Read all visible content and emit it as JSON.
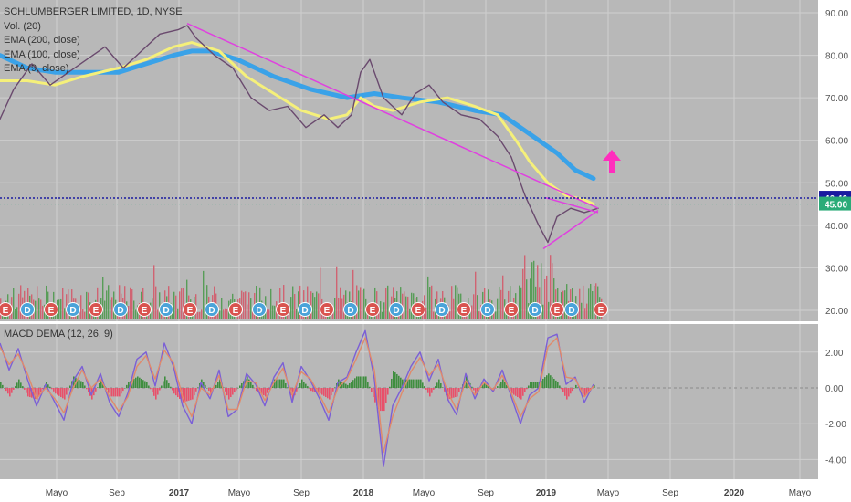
{
  "legend": {
    "symbol": "SCHLUMBERGER LIMITED, 1D, NYSE",
    "volume": "Vol. (20)",
    "ema200": "EMA (200, close)",
    "ema100": "EMA (100, close)",
    "ema9": "EMA (9, close)",
    "macd": "MACD DEMA (12, 26, 9)"
  },
  "colors": {
    "ema200": "#3aa2e8",
    "ema100": "#f5f07a",
    "price": "#6a4a6e",
    "trendline": "#e040e0",
    "hline": "#1a1aa0",
    "price_tag": "#2bab78",
    "macd_line": "#7b5fd6",
    "signal_line": "#e08a6a",
    "hist_up": "#3f8e3f",
    "hist_down": "#e8506a",
    "earnings": "#d9534f",
    "dividend": "#4aa3d9",
    "arrow": "#ff2dbd"
  },
  "chart_data": [
    {
      "type": "line",
      "title": "SCHLUMBERGER LIMITED, 1D, NYSE",
      "x_ticks": [
        "Mayo",
        "Sep",
        "2017",
        "Mayo",
        "Sep",
        "2018",
        "Mayo",
        "Sep",
        "2019",
        "Mayo",
        "Sep",
        "2020",
        "Mayo"
      ],
      "y_ticks": [
        "90.00",
        "80.00",
        "70.00",
        "60.00",
        "50.00",
        "40.00",
        "30.00",
        "20.00"
      ],
      "ylim": [
        17,
        91
      ],
      "price_labels": [
        {
          "label": "46.40",
          "value": 46.4,
          "kind": "horizontal-line"
        },
        {
          "label": "45.00",
          "value": 45.0,
          "kind": "last-price"
        }
      ],
      "series": [
        {
          "name": "EMA (200, close)",
          "points": [
            [
              0,
              80
            ],
            [
              30,
              77
            ],
            [
              60,
              76
            ],
            [
              90,
              76
            ],
            [
              130,
              76
            ],
            [
              160,
              78
            ],
            [
              190,
              80
            ],
            [
              210,
              81
            ],
            [
              230,
              81
            ],
            [
              260,
              79
            ],
            [
              300,
              75
            ],
            [
              340,
              72
            ],
            [
              380,
              70
            ],
            [
              410,
              71
            ],
            [
              440,
              70
            ],
            [
              480,
              69
            ],
            [
              520,
              67
            ],
            [
              550,
              66
            ],
            [
              570,
              63
            ],
            [
              590,
              60
            ],
            [
              610,
              57
            ],
            [
              630,
              53
            ],
            [
              650,
              51
            ]
          ]
        },
        {
          "name": "EMA (100, close)",
          "points": [
            [
              0,
              74
            ],
            [
              30,
              74
            ],
            [
              60,
              73
            ],
            [
              90,
              75
            ],
            [
              130,
              77
            ],
            [
              160,
              79
            ],
            [
              190,
              82
            ],
            [
              210,
              83
            ],
            [
              240,
              81
            ],
            [
              270,
              75
            ],
            [
              300,
              71
            ],
            [
              330,
              67
            ],
            [
              360,
              65
            ],
            [
              380,
              66
            ],
            [
              395,
              70
            ],
            [
              410,
              68
            ],
            [
              430,
              67
            ],
            [
              460,
              69
            ],
            [
              490,
              70
            ],
            [
              520,
              68
            ],
            [
              545,
              66
            ],
            [
              565,
              60
            ],
            [
              580,
              55
            ],
            [
              600,
              50
            ],
            [
              620,
              47
            ],
            [
              640,
              46
            ],
            [
              650,
              45
            ]
          ]
        },
        {
          "name": "EMA (9, close)",
          "points": [
            [
              0,
              65
            ],
            [
              15,
              72
            ],
            [
              35,
              78
            ],
            [
              55,
              73
            ],
            [
              75,
              76
            ],
            [
              95,
              79
            ],
            [
              115,
              82
            ],
            [
              135,
              77
            ],
            [
              155,
              81
            ],
            [
              175,
              85
            ],
            [
              195,
              86
            ],
            [
              205,
              87
            ],
            [
              215,
              84
            ],
            [
              235,
              80
            ],
            [
              255,
              77
            ],
            [
              275,
              70
            ],
            [
              295,
              67
            ],
            [
              315,
              68
            ],
            [
              335,
              63
            ],
            [
              355,
              66
            ],
            [
              370,
              63
            ],
            [
              385,
              66
            ],
            [
              395,
              76
            ],
            [
              405,
              79
            ],
            [
              420,
              70
            ],
            [
              440,
              66
            ],
            [
              455,
              71
            ],
            [
              470,
              73
            ],
            [
              485,
              69
            ],
            [
              505,
              66
            ],
            [
              525,
              65
            ],
            [
              545,
              61
            ],
            [
              560,
              56
            ],
            [
              575,
              47
            ],
            [
              590,
              40
            ],
            [
              600,
              36
            ],
            [
              610,
              42
            ],
            [
              625,
              44
            ],
            [
              640,
              43
            ],
            [
              655,
              44
            ]
          ]
        }
      ],
      "trendlines": [
        {
          "from": [
            205,
            87.5
          ],
          "to": [
            655,
            44
          ]
        },
        {
          "from": [
            595,
            34.5
          ],
          "to": [
            655,
            43.5
          ]
        },
        {
          "from": [
            597,
            46.5
          ],
          "to": [
            655,
            43
          ]
        }
      ],
      "markers": [
        "E",
        "D",
        "E",
        "D",
        "E",
        "D",
        "E",
        "D",
        "E",
        "D",
        "E",
        "D",
        "E",
        "D",
        "E",
        "D",
        "E",
        "D",
        "E",
        "D",
        "E",
        "D",
        "E",
        "D",
        "E",
        "D",
        "E"
      ]
    },
    {
      "type": "line",
      "title": "MACD DEMA (12, 26, 9)",
      "y_ticks": [
        "2.00",
        "0.00",
        "-2.00",
        "-4.00"
      ],
      "ylim": [
        -4.5,
        3.5
      ],
      "series": [
        {
          "name": "MACD",
          "points": [
            [
              0,
              2.5
            ],
            [
              10,
              1.0
            ],
            [
              20,
              2.2
            ],
            [
              30,
              0.5
            ],
            [
              40,
              -1.0
            ],
            [
              50,
              0.2
            ],
            [
              60,
              -0.8
            ],
            [
              70,
              -1.8
            ],
            [
              80,
              0.4
            ],
            [
              90,
              1.2
            ],
            [
              100,
              -0.4
            ],
            [
              110,
              0.8
            ],
            [
              120,
              -0.8
            ],
            [
              130,
              -1.6
            ],
            [
              140,
              -0.3
            ],
            [
              150,
              1.6
            ],
            [
              160,
              2.0
            ],
            [
              170,
              0.1
            ],
            [
              180,
              2.5
            ],
            [
              190,
              1.2
            ],
            [
              200,
              -1.0
            ],
            [
              210,
              -2.0
            ],
            [
              220,
              0.3
            ],
            [
              230,
              -0.6
            ],
            [
              240,
              1.0
            ],
            [
              250,
              -1.6
            ],
            [
              260,
              -1.2
            ],
            [
              270,
              0.8
            ],
            [
              280,
              0.2
            ],
            [
              290,
              -1.0
            ],
            [
              300,
              0.6
            ],
            [
              310,
              1.4
            ],
            [
              320,
              -0.8
            ],
            [
              330,
              1.2
            ],
            [
              340,
              0.4
            ],
            [
              350,
              -0.6
            ],
            [
              360,
              -1.8
            ],
            [
              370,
              0.3
            ],
            [
              380,
              0.6
            ],
            [
              390,
              2.0
            ],
            [
              400,
              3.2
            ],
            [
              410,
              0.5
            ],
            [
              415,
              -2.0
            ],
            [
              420,
              -4.4
            ],
            [
              430,
              -1.0
            ],
            [
              440,
              0.0
            ],
            [
              450,
              1.2
            ],
            [
              460,
              2.0
            ],
            [
              470,
              0.4
            ],
            [
              480,
              1.6
            ],
            [
              490,
              -0.6
            ],
            [
              500,
              -1.5
            ],
            [
              510,
              0.8
            ],
            [
              520,
              -0.6
            ],
            [
              530,
              0.5
            ],
            [
              540,
              -0.2
            ],
            [
              550,
              1.0
            ],
            [
              560,
              -0.5
            ],
            [
              570,
              -2.0
            ],
            [
              580,
              -0.4
            ],
            [
              590,
              0.0
            ],
            [
              600,
              2.8
            ],
            [
              610,
              3.0
            ],
            [
              620,
              0.2
            ],
            [
              630,
              0.6
            ],
            [
              640,
              -0.8
            ],
            [
              650,
              0.2
            ]
          ]
        },
        {
          "name": "Signal",
          "points": [
            [
              0,
              2.3
            ],
            [
              10,
              1.3
            ],
            [
              20,
              1.9
            ],
            [
              30,
              0.8
            ],
            [
              40,
              -0.6
            ],
            [
              50,
              0.0
            ],
            [
              60,
              -0.6
            ],
            [
              70,
              -1.4
            ],
            [
              80,
              0.0
            ],
            [
              90,
              1.0
            ],
            [
              100,
              0.0
            ],
            [
              110,
              0.5
            ],
            [
              120,
              -0.5
            ],
            [
              130,
              -1.3
            ],
            [
              140,
              -0.5
            ],
            [
              150,
              1.2
            ],
            [
              160,
              1.8
            ],
            [
              170,
              0.5
            ],
            [
              180,
              2.1
            ],
            [
              190,
              1.4
            ],
            [
              200,
              -0.5
            ],
            [
              210,
              -1.6
            ],
            [
              220,
              0.0
            ],
            [
              230,
              -0.4
            ],
            [
              240,
              0.7
            ],
            [
              250,
              -1.2
            ],
            [
              260,
              -1.2
            ],
            [
              270,
              0.4
            ],
            [
              280,
              0.3
            ],
            [
              290,
              -0.7
            ],
            [
              300,
              0.3
            ],
            [
              310,
              1.1
            ],
            [
              320,
              -0.4
            ],
            [
              330,
              0.9
            ],
            [
              340,
              0.5
            ],
            [
              350,
              -0.4
            ],
            [
              360,
              -1.4
            ],
            [
              370,
              0.0
            ],
            [
              380,
              0.5
            ],
            [
              390,
              1.6
            ],
            [
              400,
              2.8
            ],
            [
              410,
              1.0
            ],
            [
              415,
              -1.2
            ],
            [
              420,
              -3.6
            ],
            [
              430,
              -1.6
            ],
            [
              440,
              -0.3
            ],
            [
              450,
              0.9
            ],
            [
              460,
              1.7
            ],
            [
              470,
              0.7
            ],
            [
              480,
              1.3
            ],
            [
              490,
              -0.2
            ],
            [
              500,
              -1.2
            ],
            [
              510,
              0.4
            ],
            [
              520,
              -0.4
            ],
            [
              530,
              0.3
            ],
            [
              540,
              -0.1
            ],
            [
              550,
              0.7
            ],
            [
              560,
              -0.3
            ],
            [
              570,
              -1.6
            ],
            [
              580,
              -0.6
            ],
            [
              590,
              -0.2
            ],
            [
              600,
              2.3
            ],
            [
              610,
              2.8
            ],
            [
              620,
              0.6
            ],
            [
              630,
              0.5
            ],
            [
              640,
              -0.5
            ],
            [
              650,
              0.1
            ]
          ]
        }
      ]
    }
  ]
}
